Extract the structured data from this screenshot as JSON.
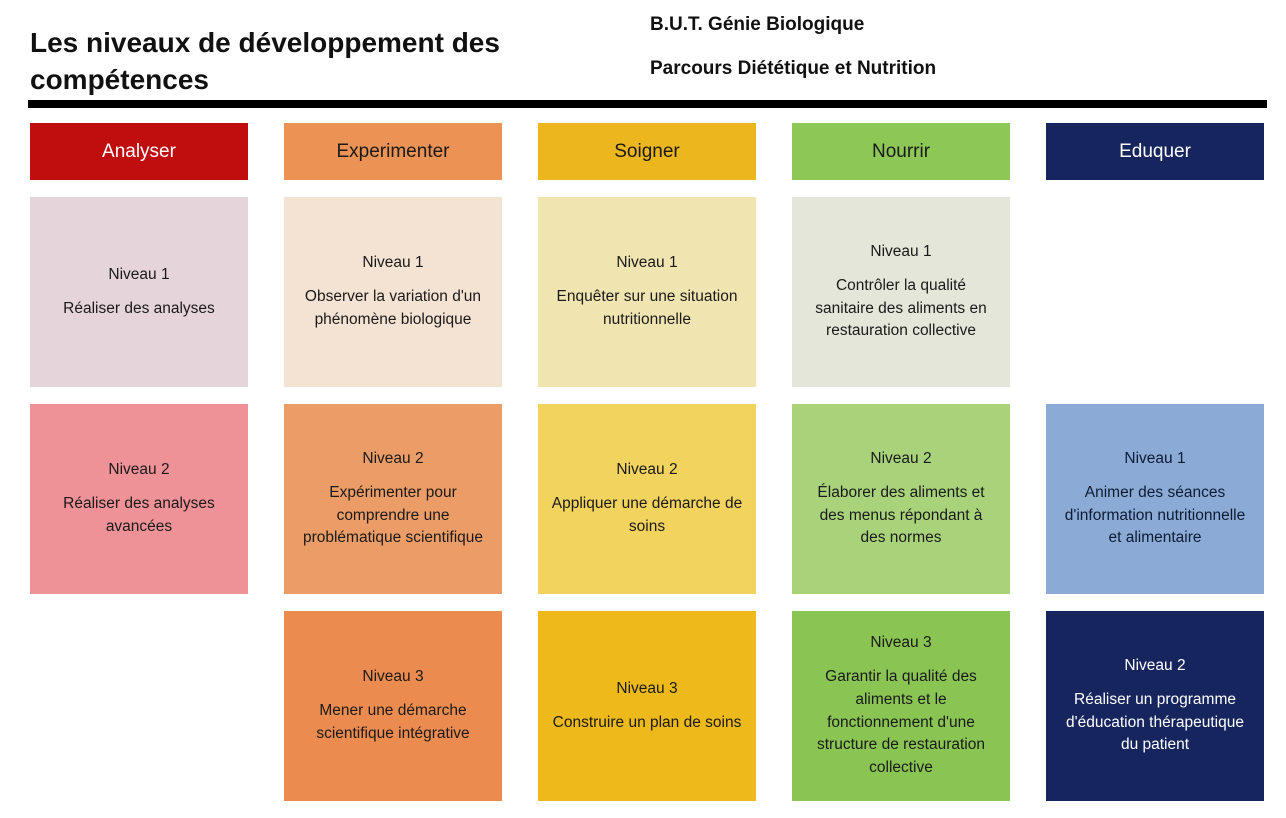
{
  "header": {
    "title": "Les niveaux de développement des compétences",
    "program": "B.U.T. Génie Biologique",
    "track": "Parcours Diététique et Nutrition"
  },
  "divider_color": "#000000",
  "columns": [
    {
      "id": "analyser",
      "header": "Analyser",
      "header_bg": "#c00d0e",
      "header_color": "#ffffff",
      "cards": [
        {
          "level": "Niveau 1",
          "text": "Réaliser des analyses",
          "bg": "#e5d4da",
          "color": "#1a1a1a"
        },
        {
          "level": "Niveau 2",
          "text": "Réaliser des analyses avancées",
          "bg": "#ee9298",
          "color": "#1a1a1a"
        }
      ]
    },
    {
      "id": "experimenter",
      "header": "Experimenter",
      "header_bg": "#eb9255",
      "header_color": "#1a1a1a",
      "cards": [
        {
          "level": "Niveau 1",
          "text": "Observer la variation d'un phénomène biologique",
          "bg": "#f4e3d2",
          "color": "#1a1a1a"
        },
        {
          "level": "Niveau 2",
          "text": "Expérimenter pour comprendre une problématique scientifique",
          "bg": "#ec9d67",
          "color": "#1a1a1a"
        },
        {
          "level": "Niveau 3",
          "text": "Mener une démarche scientifique intégrative",
          "bg": "#eb8b50",
          "color": "#1a1a1a"
        }
      ]
    },
    {
      "id": "soigner",
      "header": "Soigner",
      "header_bg": "#ecb71e",
      "header_color": "#1a1a1a",
      "cards": [
        {
          "level": "Niveau 1",
          "text": "Enquêter sur une situation nutritionnelle",
          "bg": "#f0e5b1",
          "color": "#1a1a1a"
        },
        {
          "level": "Niveau 2",
          "text": "Appliquer une démarche de soins",
          "bg": "#f1d35e",
          "color": "#1a1a1a"
        },
        {
          "level": "Niveau 3",
          "text": "Construire un plan de soins",
          "bg": "#edb91b",
          "color": "#1a1a1a"
        }
      ]
    },
    {
      "id": "nourrir",
      "header": "Nourrir",
      "header_bg": "#8dc857",
      "header_color": "#1a1a1a",
      "cards": [
        {
          "level": "Niveau 1",
          "text": "Contrôler la qualité sanitaire des aliments en restauration collective",
          "bg": "#e3e6d8",
          "color": "#1a1a1a"
        },
        {
          "level": "Niveau 2",
          "text": "Élaborer des aliments et des menus répondant à des normes",
          "bg": "#a9d37b",
          "color": "#1a1a1a"
        },
        {
          "level": "Niveau 3",
          "text": "Garantir la qualité des aliments et le fonctionnement d'une structure de restauration collective",
          "bg": "#8ac553",
          "color": "#1a1a1a"
        }
      ]
    },
    {
      "id": "eduquer",
      "header": "Eduquer",
      "header_bg": "#17255e",
      "header_color": "#ffffff",
      "cards": [
        {
          "level": "Niveau 1",
          "text": "Animer des séances d'information nutritionnelle et alimentaire",
          "bg": "#8babd6",
          "color": "#0d1b33"
        },
        {
          "level": "Niveau 2",
          "text": "Réaliser un programme d'éducation thérapeutique du patient",
          "bg": "#17255e",
          "color": "#ffffff"
        }
      ]
    }
  ]
}
